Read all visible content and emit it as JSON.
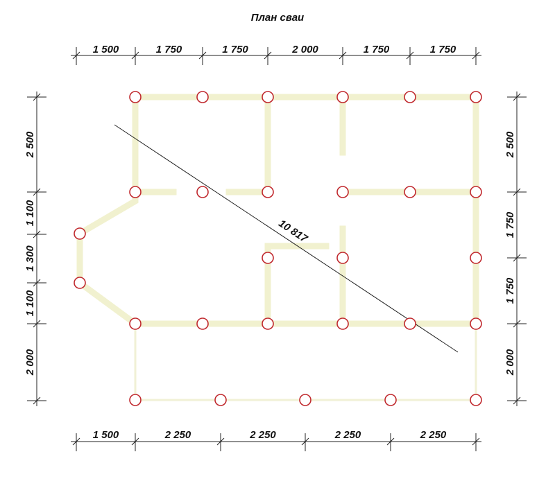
{
  "title": "План сваи",
  "top_dimensions": [
    "1 500",
    "1 750",
    "1 750",
    "2 000",
    "1 750",
    "1 750"
  ],
  "bottom_dimensions": [
    "1 500",
    "2 250",
    "2 250",
    "2 250",
    "2 250"
  ],
  "left_dimensions": [
    "2 500",
    "1 100",
    "1 300",
    "1 100",
    "2 000"
  ],
  "right_dimensions": [
    "2 500",
    "1 750",
    "1 750",
    "2 000"
  ],
  "diagonal": "10 817"
}
